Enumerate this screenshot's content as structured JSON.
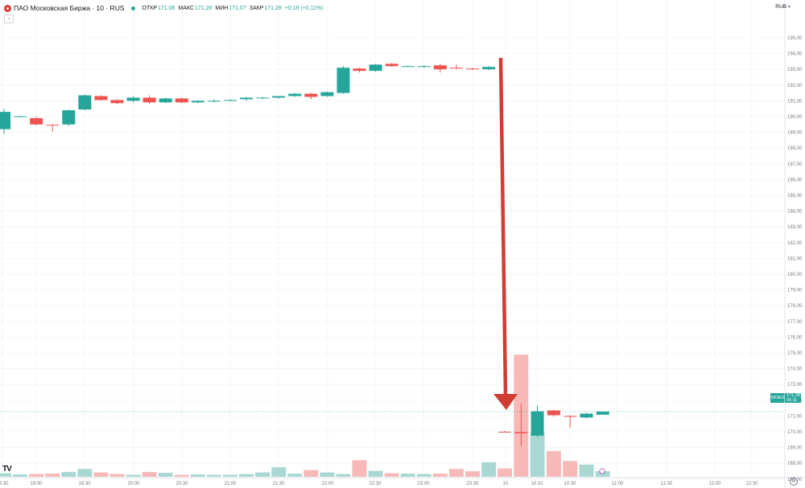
{
  "legend": {
    "symbol": "ПАО Московская Биржа · 10 · RUS",
    "open_label": "ОТКР",
    "open": "171,08",
    "high_label": "МАКС",
    "high": "171,28",
    "low_label": "МИН",
    "low": "171,07",
    "close_label": "ЗАКР",
    "close": "171,28",
    "change": "+0,19 (+0,11%)"
  },
  "currency": "RUB",
  "last_price": {
    "exchange": "MOEX",
    "price": "171,28",
    "timer": "05:11"
  },
  "colors": {
    "up": "#26a69a",
    "down": "#ef5350",
    "vol_up": "#a9d8d3",
    "vol_down": "#f7b9b7",
    "arrow": "#cf3d33",
    "grid": "#eef0f3"
  },
  "chart_data": {
    "type": "candlestick",
    "y_ticks": [
      "195,00",
      "194,00",
      "193,00",
      "192,00",
      "191,00",
      "190,00",
      "189,00",
      "188,00",
      "187,00",
      "186,00",
      "185,00",
      "184,00",
      "183,00",
      "182,00",
      "181,00",
      "180,00",
      "179,00",
      "178,00",
      "177,00",
      "176,00",
      "175,00",
      "174,00",
      "173,00",
      "172,00",
      "171,00",
      "170,00",
      "169,00",
      "168,00",
      "167,00"
    ],
    "x_ticks": [
      "18:30",
      "19:00",
      "19:30",
      "20:00",
      "20:30",
      "21:00",
      "21:30",
      "22:00",
      "22:30",
      "23:00",
      "23:30",
      "10",
      "10:10",
      "10:30",
      "11:00",
      "11:30",
      "12:00",
      "12:30"
    ],
    "ylim": [
      166.5,
      196.2
    ],
    "candles": [
      {
        "o": 189.2,
        "h": 190.5,
        "l": 188.9,
        "c": 190.3
      },
      {
        "o": 190.0,
        "h": 190.05,
        "l": 189.95,
        "c": 190.02
      },
      {
        "o": 189.9,
        "h": 190.0,
        "l": 189.45,
        "c": 189.5
      },
      {
        "o": 189.48,
        "h": 189.5,
        "l": 189.05,
        "c": 189.46
      },
      {
        "o": 189.5,
        "h": 190.45,
        "l": 189.4,
        "c": 190.4
      },
      {
        "o": 190.45,
        "h": 191.4,
        "l": 190.4,
        "c": 191.35
      },
      {
        "o": 191.3,
        "h": 191.35,
        "l": 191.0,
        "c": 191.05
      },
      {
        "o": 191.05,
        "h": 191.1,
        "l": 190.8,
        "c": 190.85
      },
      {
        "o": 191.0,
        "h": 191.3,
        "l": 190.9,
        "c": 191.2
      },
      {
        "o": 191.2,
        "h": 191.35,
        "l": 190.8,
        "c": 190.9
      },
      {
        "o": 190.9,
        "h": 191.2,
        "l": 190.85,
        "c": 191.15
      },
      {
        "o": 191.15,
        "h": 191.2,
        "l": 190.85,
        "c": 190.9
      },
      {
        "o": 190.9,
        "h": 191.05,
        "l": 190.85,
        "c": 191.0
      },
      {
        "o": 190.95,
        "h": 191.1,
        "l": 190.9,
        "c": 191.0
      },
      {
        "o": 191.0,
        "h": 191.1,
        "l": 190.95,
        "c": 191.05
      },
      {
        "o": 191.1,
        "h": 191.25,
        "l": 191.0,
        "c": 191.2
      },
      {
        "o": 191.15,
        "h": 191.25,
        "l": 191.1,
        "c": 191.2
      },
      {
        "o": 191.2,
        "h": 191.3,
        "l": 191.15,
        "c": 191.3
      },
      {
        "o": 191.3,
        "h": 191.5,
        "l": 191.25,
        "c": 191.45
      },
      {
        "o": 191.45,
        "h": 191.5,
        "l": 191.1,
        "c": 191.25
      },
      {
        "o": 191.3,
        "h": 191.6,
        "l": 191.25,
        "c": 191.55
      },
      {
        "o": 191.5,
        "h": 193.2,
        "l": 191.45,
        "c": 193.1
      },
      {
        "o": 193.05,
        "h": 193.1,
        "l": 192.8,
        "c": 192.9
      },
      {
        "o": 192.9,
        "h": 193.35,
        "l": 192.85,
        "c": 193.3
      },
      {
        "o": 193.35,
        "h": 193.4,
        "l": 193.15,
        "c": 193.2
      },
      {
        "o": 193.2,
        "h": 193.25,
        "l": 193.15,
        "c": 193.2
      },
      {
        "o": 193.2,
        "h": 193.25,
        "l": 193.1,
        "c": 193.2
      },
      {
        "o": 193.25,
        "h": 193.35,
        "l": 192.8,
        "c": 193.0
      },
      {
        "o": 193.1,
        "h": 193.3,
        "l": 193.0,
        "c": 193.05
      },
      {
        "o": 193.05,
        "h": 193.1,
        "l": 192.95,
        "c": 193.0
      },
      {
        "o": 193.0,
        "h": 193.2,
        "l": 192.95,
        "c": 193.15
      },
      {
        "o": 170.0,
        "h": 170.05,
        "l": 169.95,
        "c": 169.98
      },
      {
        "o": 169.98,
        "h": 171.8,
        "l": 169.1,
        "c": 169.9
      },
      {
        "o": 169.75,
        "h": 171.65,
        "l": 169.65,
        "c": 171.3
      },
      {
        "o": 171.35,
        "h": 171.4,
        "l": 170.95,
        "c": 171.05
      },
      {
        "o": 171.0,
        "h": 171.05,
        "l": 170.25,
        "c": 170.95
      },
      {
        "o": 170.9,
        "h": 171.2,
        "l": 170.85,
        "c": 171.15
      },
      {
        "o": 171.08,
        "h": 171.28,
        "l": 171.07,
        "c": 171.28
      }
    ],
    "volumes": [
      0.18,
      0.12,
      0.14,
      0.16,
      0.24,
      0.4,
      0.22,
      0.14,
      0.1,
      0.24,
      0.2,
      0.1,
      0.12,
      0.1,
      0.1,
      0.14,
      0.22,
      0.48,
      0.16,
      0.34,
      0.22,
      0.14,
      0.84,
      0.3,
      0.18,
      0.16,
      0.14,
      0.16,
      0.4,
      0.28,
      0.74,
      0.42,
      6.2,
      2.25,
      1.3,
      0.8,
      0.62,
      0.28
    ]
  }
}
